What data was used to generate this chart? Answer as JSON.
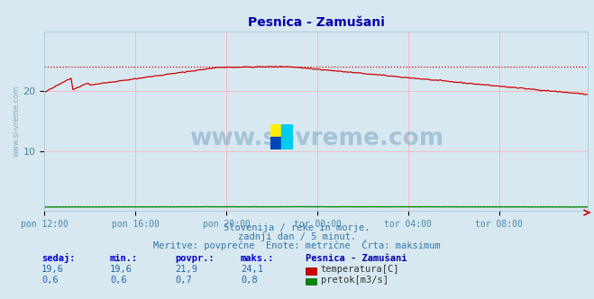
{
  "title": "Pesnica - Zamušani",
  "bg_color": "#d8e8f0",
  "plot_bg_color": "#d8e8f0",
  "grid_color": "#ffaaaa",
  "x_tick_labels": [
    "pon 12:00",
    "pon 16:00",
    "pon 20:00",
    "tor 00:00",
    "tor 04:00",
    "tor 08:00"
  ],
  "x_tick_positions": [
    0,
    48,
    96,
    144,
    192,
    240
  ],
  "total_points": 288,
  "y_min": 0,
  "y_max": 30,
  "y_ticks": [
    10,
    20
  ],
  "temp_max_line": 24.1,
  "temp_color": "#cc0000",
  "flow_color": "#008800",
  "flow_max_line": 0.8,
  "subtitle1": "Slovenija / reke in morje.",
  "subtitle2": "zadnji dan / 5 minut.",
  "subtitle3": "Meritve: povprečne  Enote: metrične  Črta: maksimum",
  "stats_headers": [
    "sedaj:",
    "min.:",
    "povpr.:",
    "maks.:"
  ],
  "stats_temp": [
    "19,6",
    "19,6",
    "21,9",
    "24,1"
  ],
  "stats_flow": [
    "0,6",
    "0,6",
    "0,7",
    "0,8"
  ],
  "legend_title": "Pesnica - Zamušani",
  "legend_temp": "temperatura[C]",
  "legend_flow": "pretok[m3/s]",
  "watermark": "www.si-vreme.com"
}
